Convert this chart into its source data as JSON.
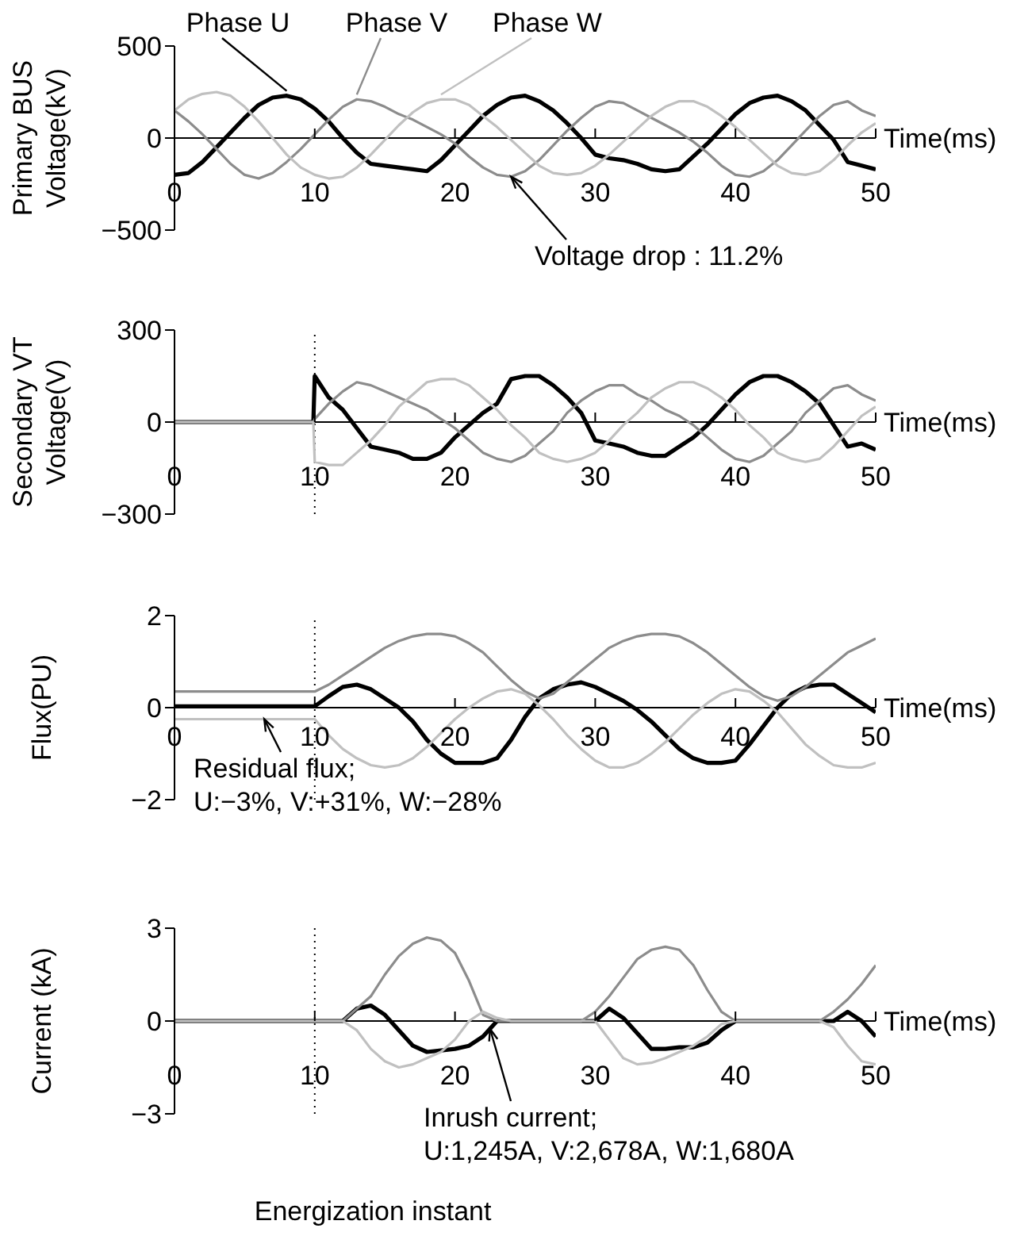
{
  "chart_data": [
    {
      "type": "line",
      "ylabel": "Primary BUS\nVoltage(kV)",
      "xlabel": "Time(ms)",
      "x": [
        0,
        1,
        2,
        3,
        4,
        5,
        6,
        7,
        8,
        9,
        10,
        11,
        12,
        13,
        14,
        15,
        16,
        17,
        18,
        19,
        20,
        21,
        22,
        23,
        24,
        25,
        26,
        27,
        28,
        29,
        30,
        31,
        32,
        33,
        34,
        35,
        36,
        37,
        38,
        39,
        40,
        41,
        42,
        43,
        44,
        45,
        46,
        47,
        48,
        49,
        50
      ],
      "xlim": [
        0,
        50
      ],
      "xticks": [
        0,
        10,
        20,
        30,
        40,
        50
      ],
      "ylim": [
        -500,
        500
      ],
      "yticks": [
        {
          "value": -500,
          "label": "−500"
        },
        0,
        500
      ],
      "series": [
        {
          "name": "Phase U",
          "color": "#000000",
          "values": [
            -200,
            -190,
            -130,
            -50,
            30,
            110,
            180,
            220,
            230,
            210,
            160,
            90,
            0,
            -80,
            -140,
            -150,
            -160,
            -170,
            -180,
            -120,
            -40,
            40,
            120,
            180,
            220,
            230,
            200,
            150,
            80,
            0,
            -90,
            -110,
            -120,
            -140,
            -170,
            -180,
            -170,
            -100,
            -30,
            50,
            130,
            190,
            220,
            230,
            200,
            150,
            70,
            -10,
            -130,
            -150,
            -170
          ]
        },
        {
          "name": "Phase V",
          "color": "#8c8c8c",
          "values": [
            150,
            90,
            20,
            -60,
            -140,
            -200,
            -220,
            -190,
            -130,
            -60,
            20,
            100,
            170,
            210,
            200,
            170,
            130,
            100,
            60,
            20,
            -30,
            -100,
            -160,
            -200,
            -210,
            -180,
            -120,
            -40,
            40,
            110,
            170,
            200,
            190,
            150,
            110,
            70,
            30,
            -20,
            -80,
            -150,
            -200,
            -210,
            -180,
            -120,
            -40,
            40,
            120,
            180,
            200,
            150,
            120
          ]
        },
        {
          "name": "Phase W",
          "color": "#c0c0c0",
          "values": [
            150,
            210,
            240,
            250,
            230,
            170,
            90,
            0,
            -90,
            -160,
            -200,
            -220,
            -210,
            -160,
            -90,
            -10,
            70,
            140,
            190,
            210,
            210,
            180,
            120,
            60,
            -10,
            -80,
            -150,
            -190,
            -200,
            -190,
            -150,
            -90,
            -20,
            50,
            120,
            170,
            200,
            200,
            170,
            120,
            60,
            -10,
            -80,
            -150,
            -190,
            -200,
            -180,
            -120,
            -40,
            30,
            80
          ]
        }
      ],
      "annotations": [
        {
          "text": "Voltage drop : 11.2%",
          "x": 24,
          "y": -210
        }
      ]
    },
    {
      "type": "line",
      "ylabel": "Secondary VT\nVoltage(V)",
      "xlabel": "Time(ms)",
      "x": [
        0,
        9.9,
        10,
        11,
        12,
        13,
        14,
        15,
        16,
        17,
        18,
        19,
        20,
        21,
        22,
        23,
        24,
        25,
        26,
        27,
        28,
        29,
        30,
        31,
        32,
        33,
        34,
        35,
        36,
        37,
        38,
        39,
        40,
        41,
        42,
        43,
        44,
        45,
        46,
        47,
        48,
        49,
        50
      ],
      "xlim": [
        0,
        50
      ],
      "xticks": [
        0,
        10,
        20,
        30,
        40,
        50
      ],
      "ylim": [
        -300,
        300
      ],
      "yticks": [
        {
          "value": -300,
          "label": "−300"
        },
        0,
        300
      ],
      "series": [
        {
          "color": "#000000",
          "values": [
            0,
            0,
            150,
            80,
            40,
            -20,
            -80,
            -90,
            -100,
            -120,
            -120,
            -100,
            -50,
            -10,
            30,
            60,
            140,
            150,
            150,
            120,
            80,
            30,
            -60,
            -70,
            -80,
            -100,
            -110,
            -110,
            -80,
            -50,
            -10,
            40,
            90,
            130,
            150,
            150,
            130,
            100,
            60,
            -10,
            -80,
            -70,
            -90
          ]
        },
        {
          "color": "#8c8c8c",
          "values": [
            0,
            0,
            10,
            60,
            100,
            130,
            120,
            100,
            80,
            60,
            40,
            10,
            -20,
            -60,
            -100,
            -120,
            -130,
            -110,
            -70,
            -30,
            30,
            70,
            100,
            120,
            120,
            90,
            70,
            40,
            20,
            -10,
            -50,
            -90,
            -120,
            -130,
            -110,
            -70,
            -30,
            30,
            70,
            110,
            120,
            90,
            70
          ]
        },
        {
          "color": "#c0c0c0",
          "values": [
            0,
            0,
            -130,
            -140,
            -140,
            -100,
            -60,
            -10,
            50,
            90,
            130,
            140,
            140,
            120,
            80,
            40,
            -10,
            -50,
            -100,
            -120,
            -130,
            -120,
            -100,
            -60,
            -10,
            30,
            80,
            110,
            130,
            130,
            110,
            80,
            40,
            -10,
            -50,
            -100,
            -120,
            -130,
            -120,
            -80,
            -30,
            20,
            50
          ]
        }
      ],
      "ref_lines": [
        {
          "axis": "x",
          "value": 10,
          "line_style": "dotted",
          "color": "#000000"
        }
      ]
    },
    {
      "type": "line",
      "ylabel": "Flux(PU)",
      "xlabel": "Time(ms)",
      "x": [
        0,
        9.9,
        10,
        11,
        12,
        13,
        14,
        15,
        16,
        17,
        18,
        19,
        20,
        21,
        22,
        23,
        24,
        25,
        26,
        27,
        28,
        29,
        30,
        31,
        32,
        33,
        34,
        35,
        36,
        37,
        38,
        39,
        40,
        41,
        42,
        43,
        44,
        45,
        46,
        47,
        48,
        49,
        50
      ],
      "xlim": [
        0,
        50
      ],
      "xticks": [
        0,
        10,
        20,
        30,
        40,
        50
      ],
      "ylim": [
        -2,
        2
      ],
      "yticks": [
        {
          "value": -2,
          "label": "−2"
        },
        0,
        2
      ],
      "series": [
        {
          "color": "#000000",
          "values": [
            0.03,
            0.03,
            0.03,
            0.25,
            0.45,
            0.5,
            0.4,
            0.2,
            0,
            -0.3,
            -0.7,
            -1.0,
            -1.2,
            -1.2,
            -1.2,
            -1.1,
            -0.7,
            -0.2,
            0.2,
            0.4,
            0.5,
            0.55,
            0.45,
            0.3,
            0.15,
            -0.05,
            -0.3,
            -0.6,
            -0.9,
            -1.1,
            -1.2,
            -1.2,
            -1.15,
            -0.8,
            -0.4,
            0,
            0.3,
            0.45,
            0.5,
            0.5,
            0.3,
            0.1,
            -0.1
          ]
        },
        {
          "color": "#8c8c8c",
          "values": [
            0.35,
            0.35,
            0.35,
            0.5,
            0.7,
            0.9,
            1.1,
            1.3,
            1.45,
            1.55,
            1.6,
            1.6,
            1.55,
            1.4,
            1.2,
            0.9,
            0.6,
            0.35,
            0.2,
            0.3,
            0.55,
            0.8,
            1.05,
            1.3,
            1.45,
            1.55,
            1.6,
            1.6,
            1.55,
            1.4,
            1.2,
            0.95,
            0.7,
            0.45,
            0.25,
            0.15,
            0.25,
            0.45,
            0.7,
            0.95,
            1.2,
            1.35,
            1.5
          ]
        },
        {
          "color": "#c0c0c0",
          "values": [
            -0.25,
            -0.25,
            -0.25,
            -0.6,
            -0.9,
            -1.1,
            -1.25,
            -1.3,
            -1.25,
            -1.1,
            -0.85,
            -0.55,
            -0.25,
            0,
            0.2,
            0.35,
            0.4,
            0.3,
            0.05,
            -0.25,
            -0.6,
            -0.9,
            -1.15,
            -1.3,
            -1.3,
            -1.2,
            -1.0,
            -0.75,
            -0.45,
            -0.15,
            0.1,
            0.3,
            0.4,
            0.35,
            0.15,
            -0.1,
            -0.45,
            -0.8,
            -1.05,
            -1.25,
            -1.3,
            -1.3,
            -1.2
          ]
        }
      ],
      "ref_lines": [
        {
          "axis": "x",
          "value": 10,
          "line_style": "dotted",
          "color": "#000000"
        }
      ],
      "annotations": [
        {
          "text": "Residual flux;\nU:−3%, V:+31%, W:−28%",
          "x": 6.4,
          "y": -0.25
        }
      ]
    },
    {
      "type": "line",
      "ylabel": "Current (kA)",
      "xlabel": "Time(ms)",
      "x": [
        0,
        9.9,
        10,
        11,
        12,
        13,
        14,
        15,
        16,
        17,
        18,
        19,
        20,
        21,
        22,
        23,
        24,
        25,
        26,
        27,
        28,
        29,
        30,
        31,
        32,
        33,
        34,
        35,
        36,
        37,
        38,
        39,
        40,
        41,
        42,
        43,
        44,
        45,
        46,
        47,
        48,
        49,
        50
      ],
      "xlim": [
        0,
        50
      ],
      "xticks": [
        0,
        10,
        20,
        30,
        40,
        50
      ],
      "ylim": [
        -3,
        3
      ],
      "yticks": [
        {
          "value": -3,
          "label": "−3"
        },
        0,
        3
      ],
      "series": [
        {
          "color": "#000000",
          "values": [
            0,
            0,
            0,
            0,
            0,
            0.4,
            0.5,
            0.2,
            -0.3,
            -0.8,
            -1.0,
            -0.95,
            -0.9,
            -0.8,
            -0.5,
            0,
            0,
            0,
            0,
            0,
            0,
            0,
            0,
            0.4,
            0.1,
            -0.4,
            -0.9,
            -0.9,
            -0.85,
            -0.85,
            -0.7,
            -0.3,
            0,
            0,
            0,
            0,
            0,
            0,
            0,
            0,
            0.3,
            0,
            -0.5
          ]
        },
        {
          "color": "#8c8c8c",
          "values": [
            0,
            0,
            0,
            0,
            0,
            0.4,
            0.8,
            1.5,
            2.1,
            2.5,
            2.7,
            2.6,
            2.2,
            1.3,
            0.2,
            0,
            0,
            0,
            0,
            0,
            0,
            0,
            0.3,
            0.8,
            1.4,
            2.0,
            2.3,
            2.4,
            2.3,
            1.8,
            1.0,
            0.3,
            0,
            0,
            0,
            0,
            0,
            0,
            0,
            0.3,
            0.7,
            1.2,
            1.8
          ]
        },
        {
          "color": "#c0c0c0",
          "values": [
            0,
            0,
            0,
            0,
            0,
            -0.3,
            -0.9,
            -1.3,
            -1.5,
            -1.4,
            -1.2,
            -1.0,
            -0.6,
            0,
            0.3,
            0.1,
            0,
            0,
            0,
            0,
            0,
            0,
            0,
            -0.6,
            -1.2,
            -1.4,
            -1.35,
            -1.2,
            -1.0,
            -0.8,
            -0.5,
            -0.1,
            0,
            0,
            0,
            0,
            0,
            0,
            0,
            -0.2,
            -0.8,
            -1.3,
            -1.4
          ]
        }
      ],
      "ref_lines": [
        {
          "axis": "x",
          "value": 10,
          "line_style": "dotted",
          "color": "#000000",
          "label": "Energization instant"
        }
      ],
      "annotations": [
        {
          "text": "Inrush current;\nU:1,245A, V:2,678A, W:1,680A",
          "x": 22.5,
          "y": -0.25
        }
      ]
    }
  ]
}
